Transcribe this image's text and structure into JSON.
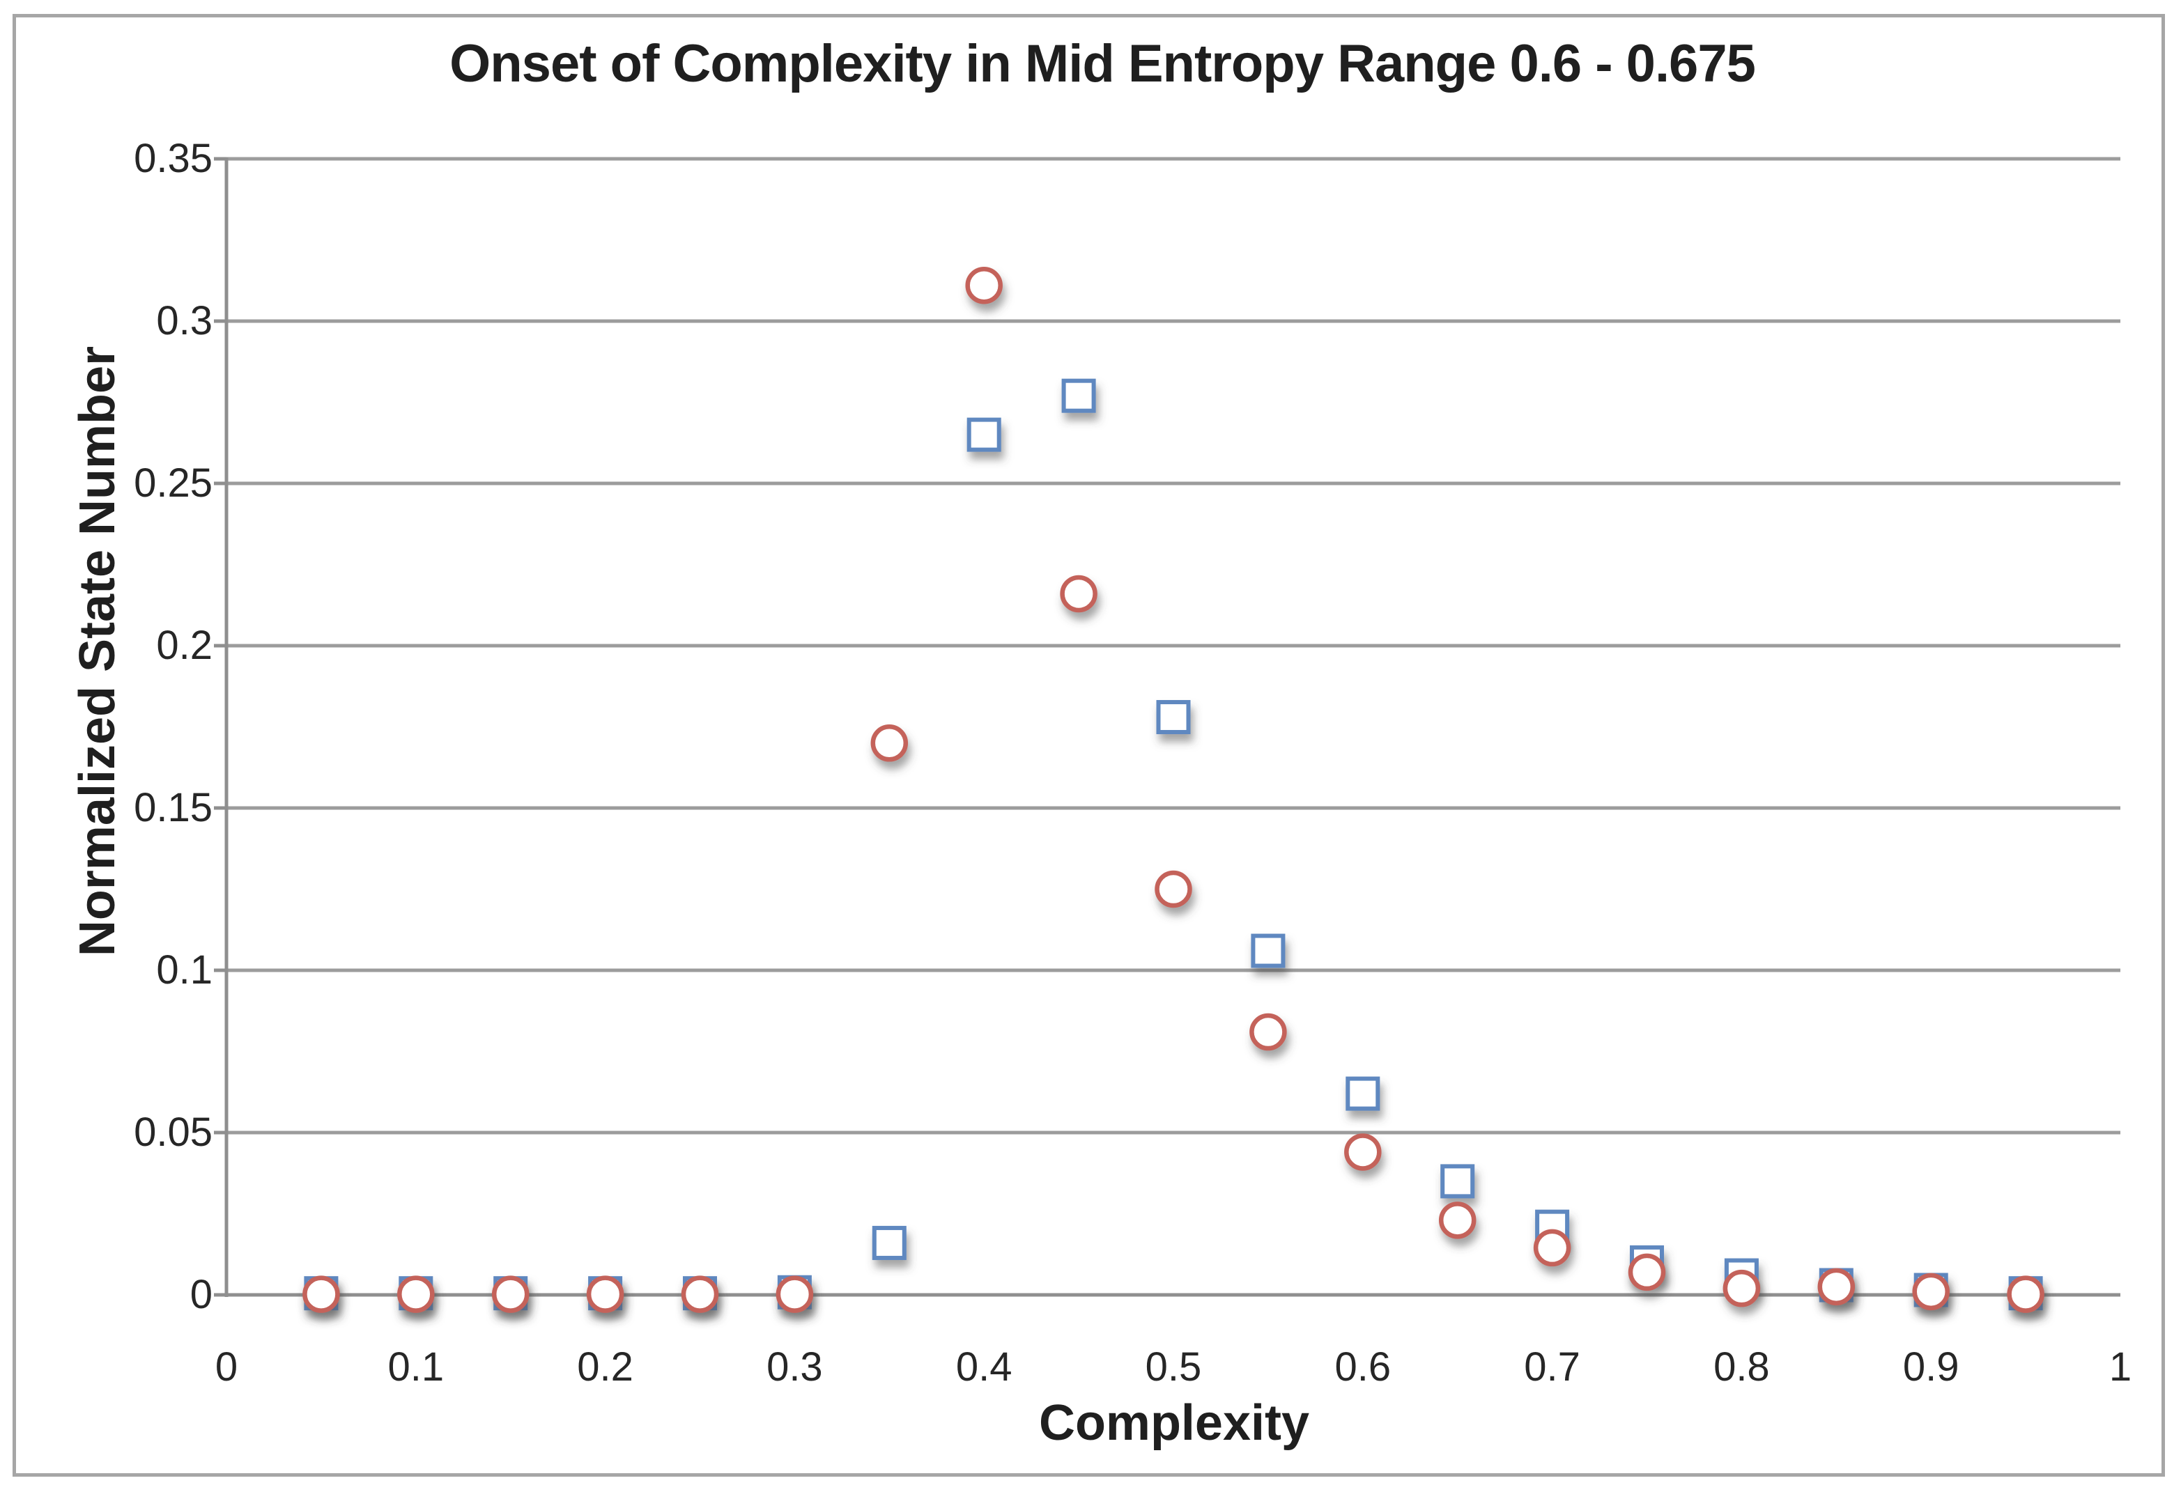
{
  "figure": {
    "background_color": "#ffffff",
    "border_color": "#a6a6a6",
    "gridline_color": "#9c9c9c",
    "axis_line_color": "#8f8f8f",
    "text_color": "#1f1f1f"
  },
  "chart_data": {
    "type": "scatter",
    "title": "Onset of Complexity in Mid Entropy Range 0.6 - 0.675",
    "xlabel": "Complexity",
    "ylabel": "Normalized State Number",
    "xlim": [
      0,
      1
    ],
    "ylim": [
      0,
      0.35
    ],
    "grid": "horizontal-only",
    "legend_position": "none",
    "x_ticks": [
      {
        "value": 0,
        "label": "0"
      },
      {
        "value": 0.1,
        "label": "0.1"
      },
      {
        "value": 0.2,
        "label": "0.2"
      },
      {
        "value": 0.3,
        "label": "0.3"
      },
      {
        "value": 0.4,
        "label": "0.4"
      },
      {
        "value": 0.5,
        "label": "0.5"
      },
      {
        "value": 0.6,
        "label": "0.6"
      },
      {
        "value": 0.7,
        "label": "0.7"
      },
      {
        "value": 0.8,
        "label": "0.8"
      },
      {
        "value": 0.9,
        "label": "0.9"
      },
      {
        "value": 1,
        "label": "1"
      }
    ],
    "y_ticks": [
      {
        "value": 0,
        "label": "0"
      },
      {
        "value": 0.05,
        "label": "0.05"
      },
      {
        "value": 0.1,
        "label": "0.1"
      },
      {
        "value": 0.15,
        "label": "0.15"
      },
      {
        "value": 0.2,
        "label": "0.2"
      },
      {
        "value": 0.25,
        "label": "0.25"
      },
      {
        "value": 0.3,
        "label": "0.3"
      },
      {
        "value": 0.35,
        "label": "0.35"
      }
    ],
    "x": [
      0.05,
      0.1,
      0.15,
      0.2,
      0.25,
      0.3,
      0.35,
      0.4,
      0.45,
      0.5,
      0.55,
      0.6,
      0.65,
      0.7,
      0.75,
      0.8,
      0.85,
      0.9,
      0.95
    ],
    "series": [
      {
        "name": "blue-squares",
        "marker": "square",
        "color": "#5e88c0",
        "fill": "#ffffff",
        "values": [
          0.0005,
          0.0005,
          0.0005,
          0.0005,
          0.0005,
          0.0008,
          0.016,
          0.265,
          0.277,
          0.178,
          0.106,
          0.062,
          0.035,
          0.021,
          0.01,
          0.006,
          0.003,
          0.0015,
          0.0005
        ]
      },
      {
        "name": "red-circles",
        "marker": "circle",
        "color": "#c4625a",
        "fill": "#ffffff",
        "values": [
          0.0002,
          0.0002,
          0.0002,
          0.0002,
          0.0002,
          0.0002,
          0.17,
          0.311,
          0.216,
          0.125,
          0.081,
          0.044,
          0.023,
          0.0145,
          0.007,
          0.002,
          0.0025,
          0.001,
          0.0002
        ]
      }
    ]
  }
}
